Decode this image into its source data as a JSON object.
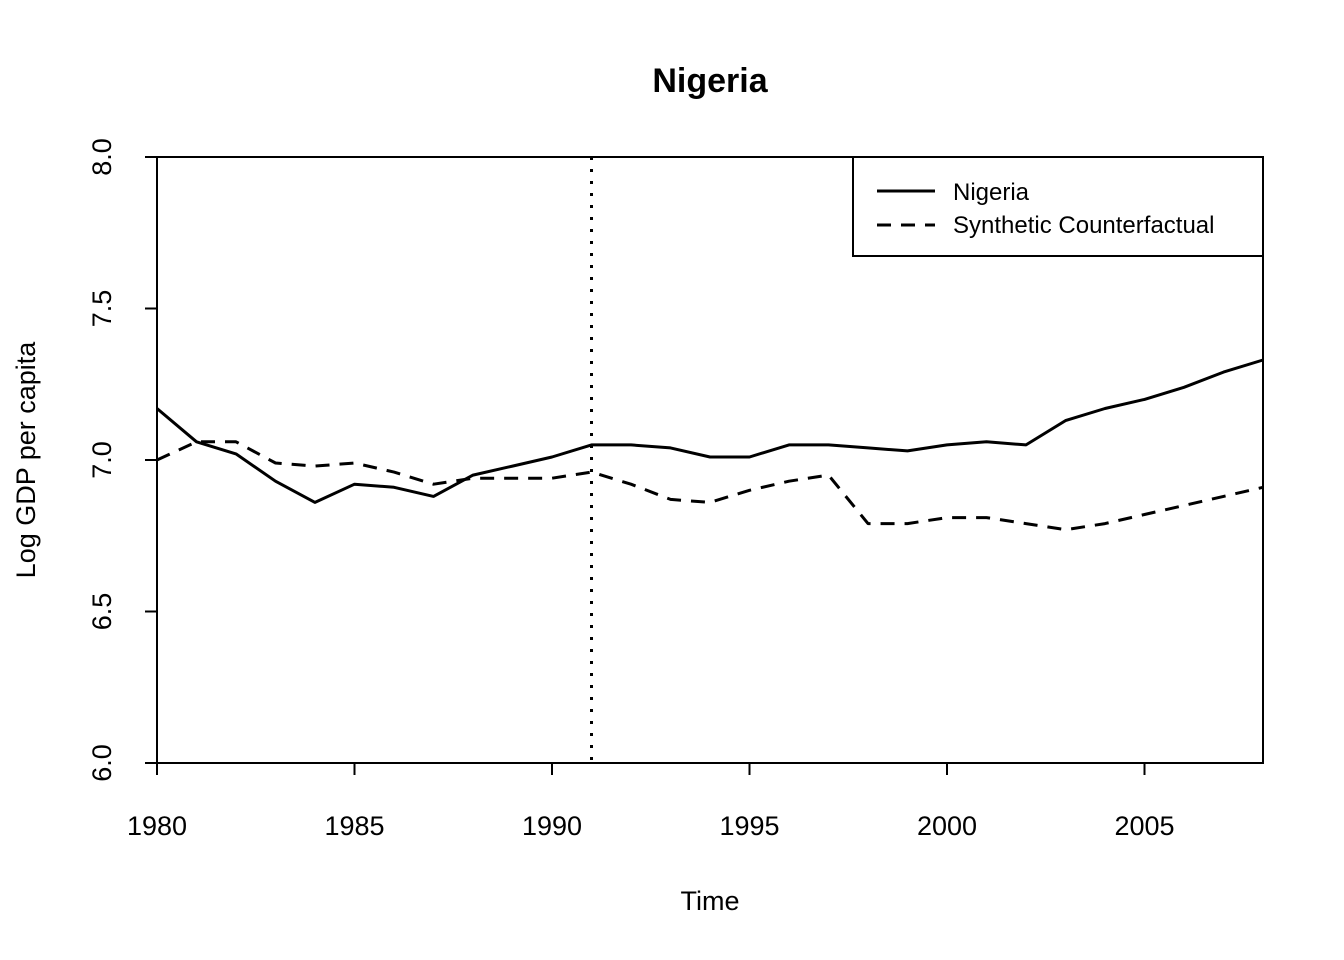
{
  "chart_data": {
    "type": "line",
    "title": "Nigeria",
    "xlabel": "Time",
    "ylabel": "Log GDP per capita",
    "xlim": [
      1980,
      2008
    ],
    "ylim": [
      6.0,
      8.0
    ],
    "x_ticks": [
      1980,
      1985,
      1990,
      1995,
      2000,
      2005
    ],
    "y_ticks": [
      6.0,
      6.5,
      7.0,
      7.5,
      8.0
    ],
    "x_tick_labels": [
      "1980",
      "1985",
      "1990",
      "1995",
      "2000",
      "2005"
    ],
    "y_tick_labels": [
      "6.0",
      "6.5",
      "7.0",
      "7.5",
      "8.0"
    ],
    "treatment_year": 1991,
    "grid": false,
    "legend_position": "top-right",
    "x": [
      1980,
      1981,
      1982,
      1983,
      1984,
      1985,
      1986,
      1987,
      1988,
      1989,
      1990,
      1991,
      1992,
      1993,
      1994,
      1995,
      1996,
      1997,
      1998,
      1999,
      2000,
      2001,
      2002,
      2003,
      2004,
      2005,
      2006,
      2007,
      2008
    ],
    "series": [
      {
        "name": "Nigeria",
        "style": "solid",
        "values": [
          7.17,
          7.06,
          7.02,
          6.93,
          6.86,
          6.92,
          6.91,
          6.88,
          6.95,
          6.98,
          7.01,
          7.05,
          7.05,
          7.04,
          7.01,
          7.01,
          7.05,
          7.05,
          7.04,
          7.03,
          7.05,
          7.06,
          7.05,
          7.13,
          7.17,
          7.2,
          7.24,
          7.29,
          7.33
        ]
      },
      {
        "name": "Synthetic Counterfactual",
        "style": "dashed",
        "values": [
          7.0,
          7.06,
          7.06,
          6.99,
          6.98,
          6.99,
          6.96,
          6.92,
          6.94,
          6.94,
          6.94,
          6.96,
          6.92,
          6.87,
          6.86,
          6.9,
          6.93,
          6.95,
          6.79,
          6.79,
          6.81,
          6.81,
          6.79,
          6.77,
          6.79,
          6.82,
          6.85,
          6.88,
          6.91
        ]
      }
    ]
  }
}
